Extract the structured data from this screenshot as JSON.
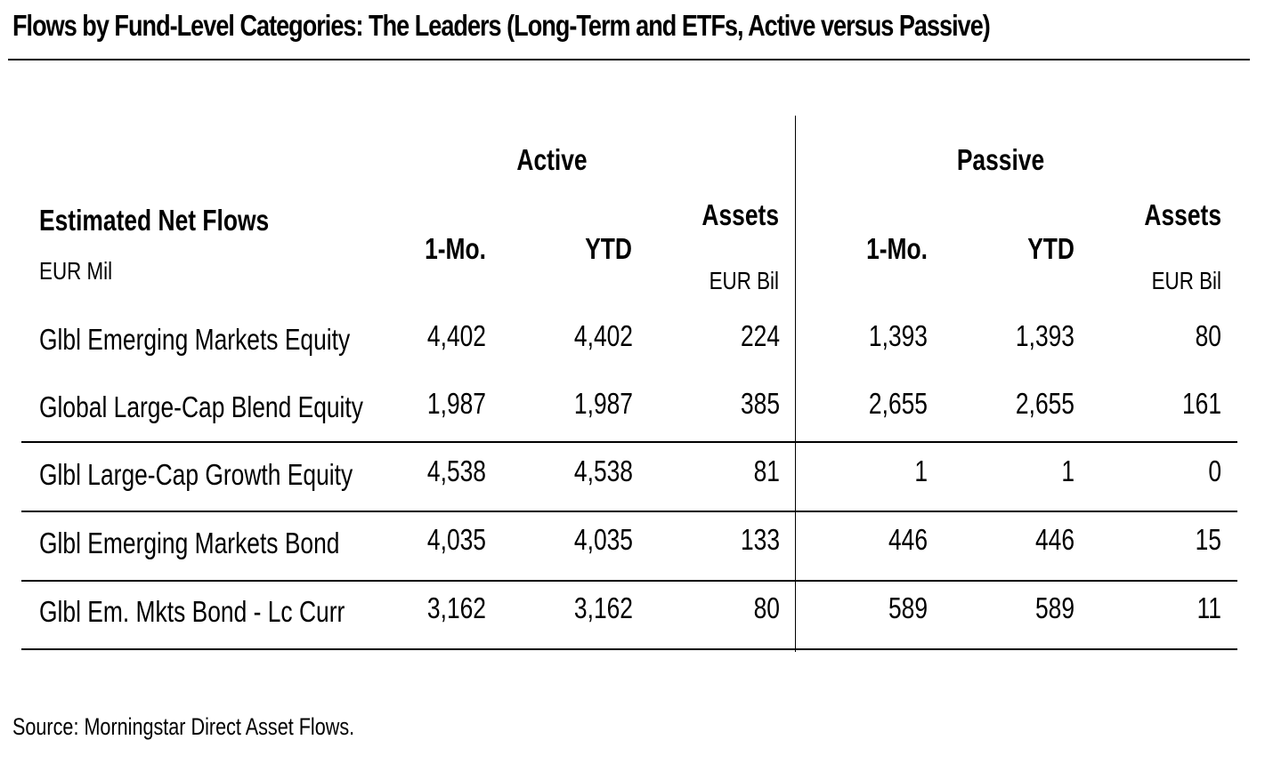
{
  "title": "Flows by Fund-Level Categories: The Leaders (Long-Term and ETFs, Active versus Passive)",
  "source": "Source: Morningstar Direct Asset Flows.",
  "chart_data": {
    "type": "table",
    "row_header_label": "Estimated Net Flows",
    "row_header_unit": "EUR Mil",
    "groups": [
      {
        "name": "Active",
        "columns": [
          "1-Mo.",
          "YTD",
          "Assets"
        ],
        "assets_unit": "EUR Bil"
      },
      {
        "name": "Passive",
        "columns": [
          "1-Mo.",
          "YTD",
          "Assets"
        ],
        "assets_unit": "EUR Bil"
      }
    ],
    "rows": [
      {
        "category": "Glbl Emerging Markets Equity",
        "values": [
          "4,402",
          "4,402",
          "224",
          "1,393",
          "1,393",
          "80"
        ]
      },
      {
        "category": "Global Large-Cap Blend Equity",
        "values": [
          "1,987",
          "1,987",
          "385",
          "2,655",
          "2,655",
          "161"
        ]
      },
      {
        "category": "Glbl Large-Cap Growth Equity",
        "values": [
          "4,538",
          "4,538",
          "81",
          "1",
          "1",
          "0"
        ]
      },
      {
        "category": "Glbl Emerging Markets Bond",
        "values": [
          "4,035",
          "4,035",
          "133",
          "446",
          "446",
          "15"
        ]
      },
      {
        "category": "Glbl Em. Mkts Bond - Lc Curr",
        "values": [
          "3,162",
          "3,162",
          "80",
          "589",
          "589",
          "11"
        ]
      }
    ]
  }
}
